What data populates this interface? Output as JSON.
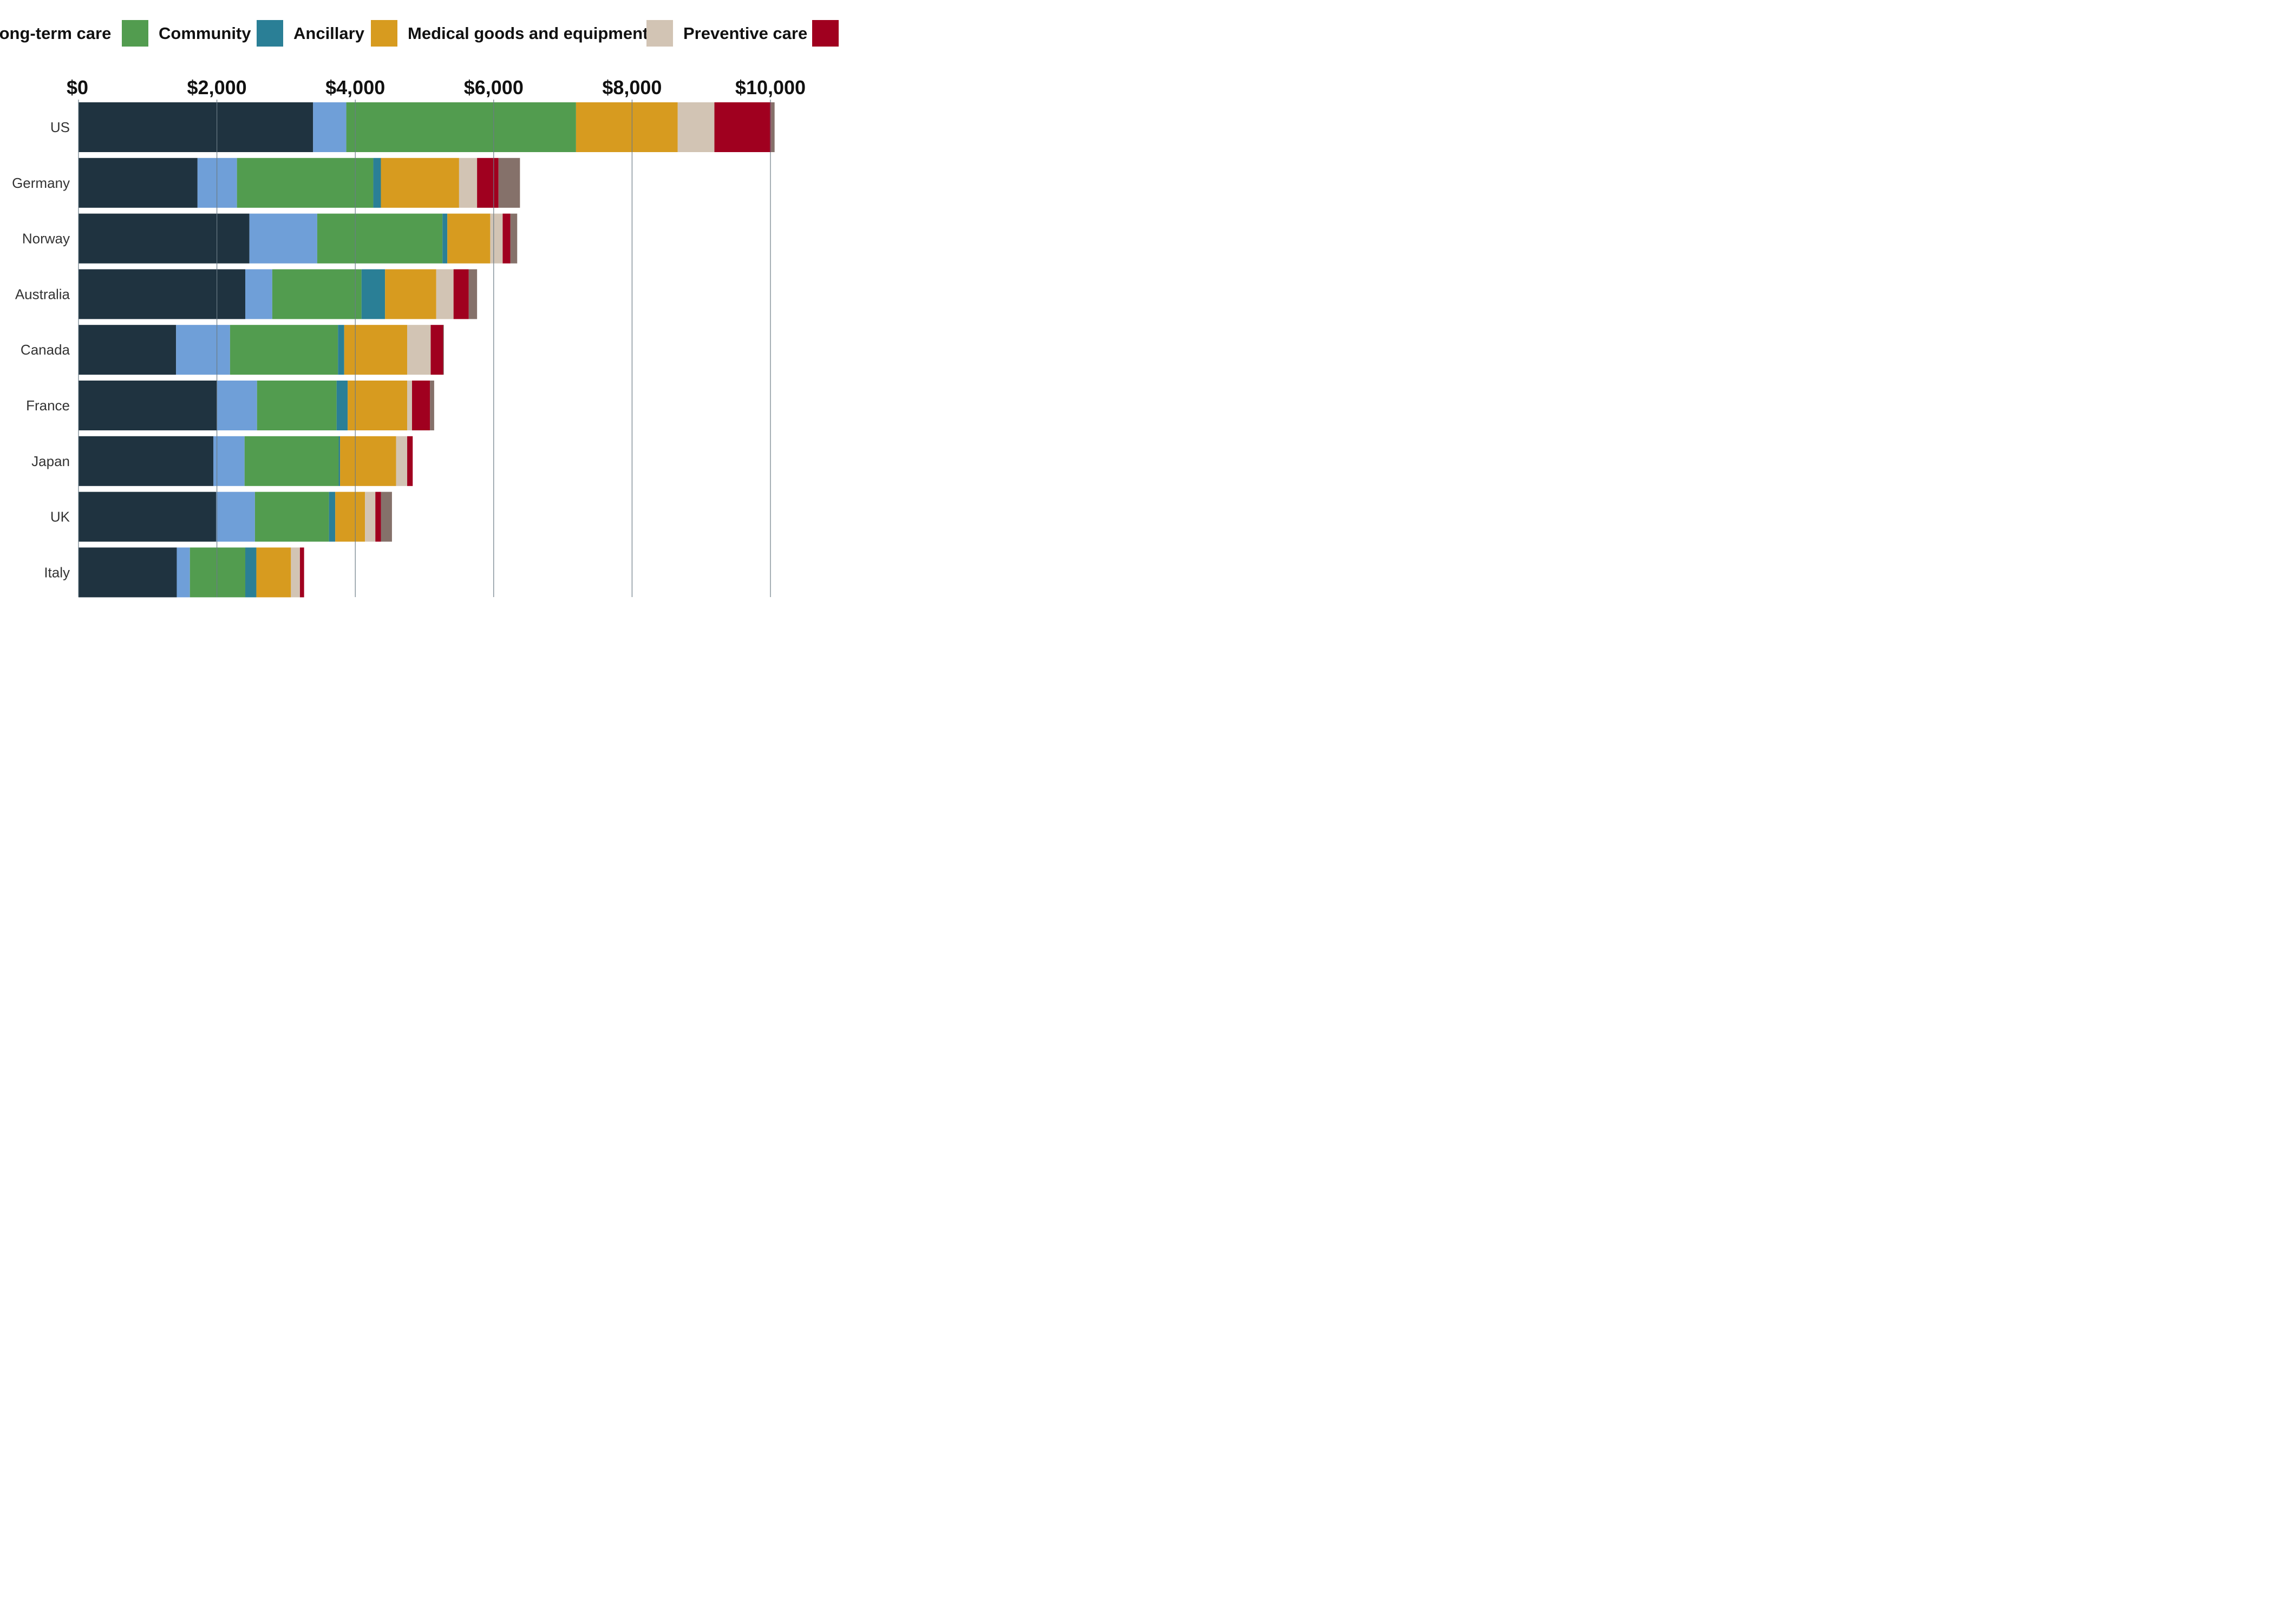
{
  "chart_data": {
    "type": "bar",
    "orientation": "horizontal",
    "stacked": true,
    "categories": [
      "US",
      "Germany",
      "Norway",
      "Australia",
      "Canada",
      "France",
      "Japan",
      "UK",
      "Italy"
    ],
    "x_ticks": [
      "$0",
      "$2,000",
      "$4,000",
      "$6,000",
      "$8,000",
      "$10,000"
    ],
    "xlim": [
      0,
      10000
    ],
    "grid": true,
    "legend_position": "top",
    "series": [
      {
        "name": "",
        "color": "#1f3340",
        "values": [
          3390,
          1720,
          2470,
          2410,
          1410,
          2000,
          1950,
          1990,
          1420
        ]
      },
      {
        "name": "long-term care",
        "color": "#6f9fd8",
        "values": [
          480,
          570,
          980,
          390,
          780,
          580,
          450,
          560,
          190
        ]
      },
      {
        "name": "Community",
        "color": "#529c4f",
        "values": [
          3320,
          1970,
          1810,
          1290,
          1560,
          1150,
          1360,
          1070,
          800
        ]
      },
      {
        "name": "Ancillary",
        "color": "#2a7f96",
        "values": [
          0,
          110,
          70,
          340,
          90,
          160,
          20,
          90,
          160
        ]
      },
      {
        "name": "Medical goods and equipment",
        "color": "#d79b1f",
        "values": [
          1470,
          1130,
          620,
          740,
          910,
          860,
          810,
          430,
          500
        ]
      },
      {
        "name": "Preventive care",
        "color": "#d2c4b4",
        "values": [
          530,
          260,
          180,
          250,
          340,
          70,
          160,
          150,
          130
        ]
      },
      {
        "name": "",
        "color": "#a0001f",
        "values": [
          820,
          310,
          110,
          220,
          180,
          260,
          80,
          80,
          60
        ]
      },
      {
        "name": "",
        "color": "#85716a",
        "values": [
          50,
          310,
          100,
          120,
          10,
          60,
          0,
          160,
          0
        ]
      }
    ]
  }
}
